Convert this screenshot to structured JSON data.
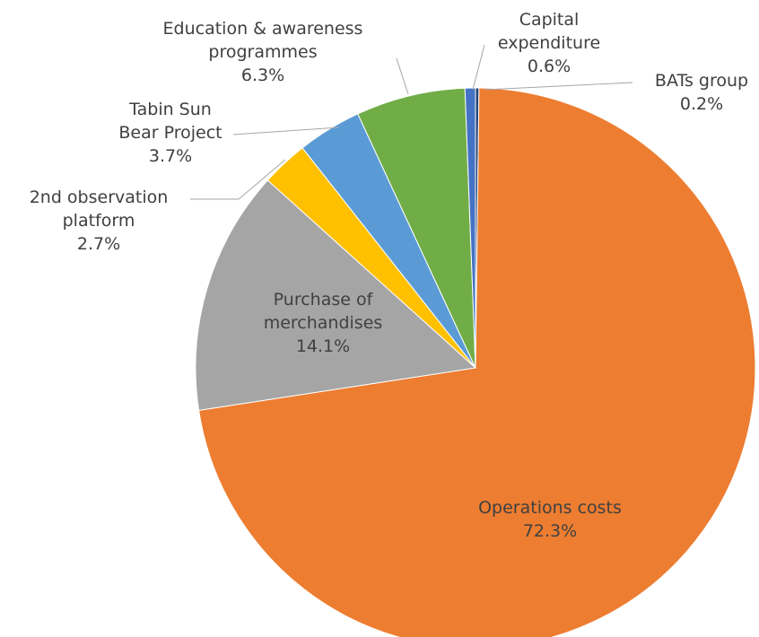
{
  "chart_data": {
    "type": "pie",
    "title": "",
    "slices": [
      {
        "lines": [
          "BATs group"
        ],
        "value_label": "0.2%",
        "value": 0.2,
        "color": "#264478"
      },
      {
        "lines": [
          "Operations costs"
        ],
        "value_label": "72.3%",
        "value": 72.3,
        "color": "#ed7d31"
      },
      {
        "lines": [
          "Purchase of",
          "merchandises"
        ],
        "value_label": "14.1%",
        "value": 14.1,
        "color": "#a5a5a5"
      },
      {
        "lines": [
          "2nd observation",
          "platform"
        ],
        "value_label": "2.7%",
        "value": 2.7,
        "color": "#ffc000"
      },
      {
        "lines": [
          "Tabin Sun",
          "Bear Project"
        ],
        "value_label": "3.7%",
        "value": 3.7,
        "color": "#5b9bd5"
      },
      {
        "lines": [
          "Education & awareness",
          "programmes"
        ],
        "value_label": "6.3%",
        "value": 6.3,
        "color": "#70ad47"
      },
      {
        "lines": [
          "Capital",
          "expenditure"
        ],
        "value_label": "0.6%",
        "value": 0.6,
        "color": "#4472c4"
      }
    ]
  }
}
